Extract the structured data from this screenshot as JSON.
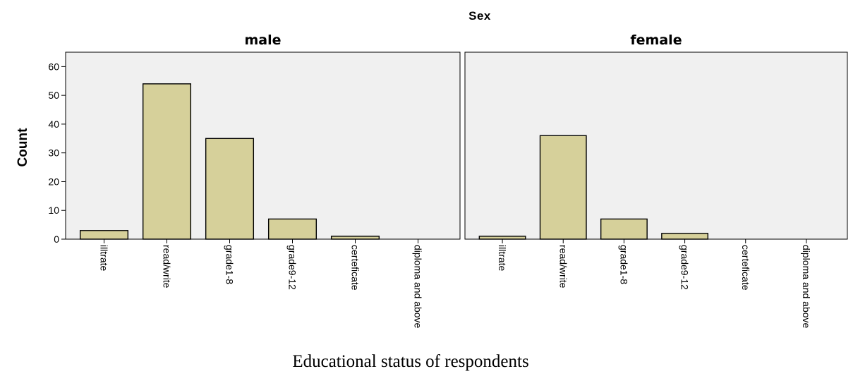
{
  "chart_data": {
    "type": "bar",
    "title": "Sex",
    "ylabel": "Count",
    "xlabel": "Educational status of respondents",
    "ylim": [
      0,
      65
    ],
    "yticks": [
      0,
      10,
      20,
      30,
      40,
      50,
      60
    ],
    "categories": [
      "illtrate",
      "read/write",
      "grade1-8",
      "grade9-12",
      "certeficate",
      "diploma and above"
    ],
    "series": [
      {
        "name": "male",
        "values": [
          3,
          54,
          35,
          7,
          1,
          0
        ]
      },
      {
        "name": "female",
        "values": [
          1,
          36,
          7,
          2,
          0,
          0
        ]
      }
    ],
    "bar_color": "#d6d09a",
    "panel_background": "#f0f0f0",
    "grid": false,
    "legend": "none"
  }
}
